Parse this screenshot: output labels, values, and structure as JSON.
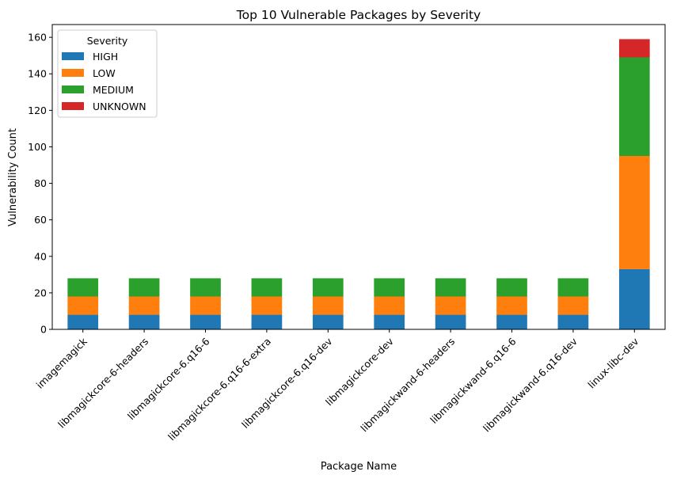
{
  "chart_data": {
    "type": "bar",
    "stacked": true,
    "title": "Top 10 Vulnerable Packages by Severity",
    "xlabel": "Package Name",
    "ylabel": "Vulnerability Count",
    "ylim": [
      0,
      167
    ],
    "yticks": [
      0,
      20,
      40,
      60,
      80,
      100,
      120,
      140,
      160
    ],
    "grid": false,
    "categories": [
      "imagemagick",
      "libmagickcore-6-headers",
      "libmagickcore-6.q16-6",
      "libmagickcore-6.q16-6-extra",
      "libmagickcore-6.q16-dev",
      "libmagickcore-dev",
      "libmagickwand-6-headers",
      "libmagickwand-6.q16-6",
      "libmagickwand-6.q16-dev",
      "linux-libc-dev"
    ],
    "series": [
      {
        "name": "HIGH",
        "color": "#1f77b4",
        "values": [
          8,
          8,
          8,
          8,
          8,
          8,
          8,
          8,
          8,
          33
        ]
      },
      {
        "name": "LOW",
        "color": "#ff7f0e",
        "values": [
          10,
          10,
          10,
          10,
          10,
          10,
          10,
          10,
          10,
          62
        ]
      },
      {
        "name": "MEDIUM",
        "color": "#2ca02c",
        "values": [
          10,
          10,
          10,
          10,
          10,
          10,
          10,
          10,
          10,
          54
        ]
      },
      {
        "name": "UNKNOWN",
        "color": "#d62728",
        "values": [
          0,
          0,
          0,
          0,
          0,
          0,
          0,
          0,
          0,
          10
        ]
      }
    ],
    "legend": {
      "title": "Severity",
      "position": "top-left"
    }
  }
}
